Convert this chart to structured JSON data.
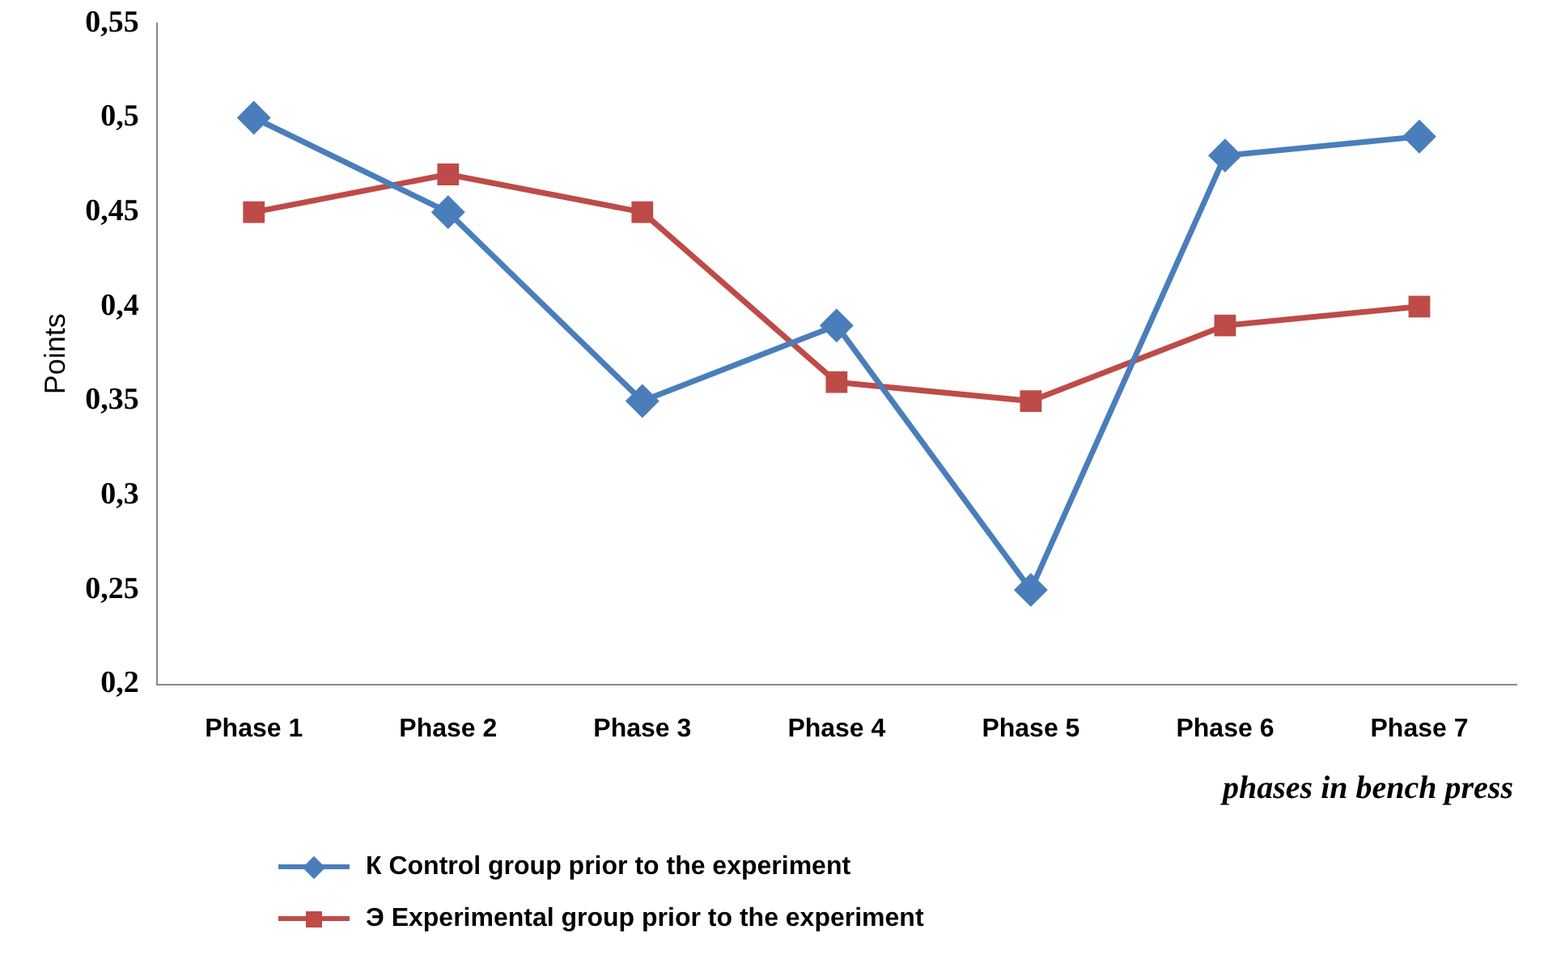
{
  "chart_data": {
    "type": "line",
    "ylabel": "Points",
    "xlabel": "phases in bench press",
    "categories": [
      "Phase 1",
      "Phase 2",
      "Phase 3",
      "Phase 4",
      "Phase 5",
      "Phase 6",
      "Phase 7"
    ],
    "ylim": [
      0.2,
      0.55
    ],
    "yticks": [
      {
        "value": 0.2,
        "label": "0,2"
      },
      {
        "value": 0.25,
        "label": "0,25"
      },
      {
        "value": 0.3,
        "label": "0,3"
      },
      {
        "value": 0.35,
        "label": "0,35"
      },
      {
        "value": 0.4,
        "label": "0,4"
      },
      {
        "value": 0.45,
        "label": "0,45"
      },
      {
        "value": 0.5,
        "label": "0,5"
      },
      {
        "value": 0.55,
        "label": "0,55"
      }
    ],
    "grid": false,
    "legend": "bottom",
    "series": [
      {
        "name": "К  Control group prior to the experiment",
        "color": "#4a7ebb",
        "marker": "diamond",
        "values": [
          0.5,
          0.45,
          0.35,
          0.39,
          0.25,
          0.48,
          0.49
        ]
      },
      {
        "name": "Э  Experimental group prior to the experiment",
        "color": "#be4b48",
        "marker": "square",
        "values": [
          0.45,
          0.47,
          0.45,
          0.36,
          0.35,
          0.39,
          0.4
        ]
      }
    ]
  }
}
